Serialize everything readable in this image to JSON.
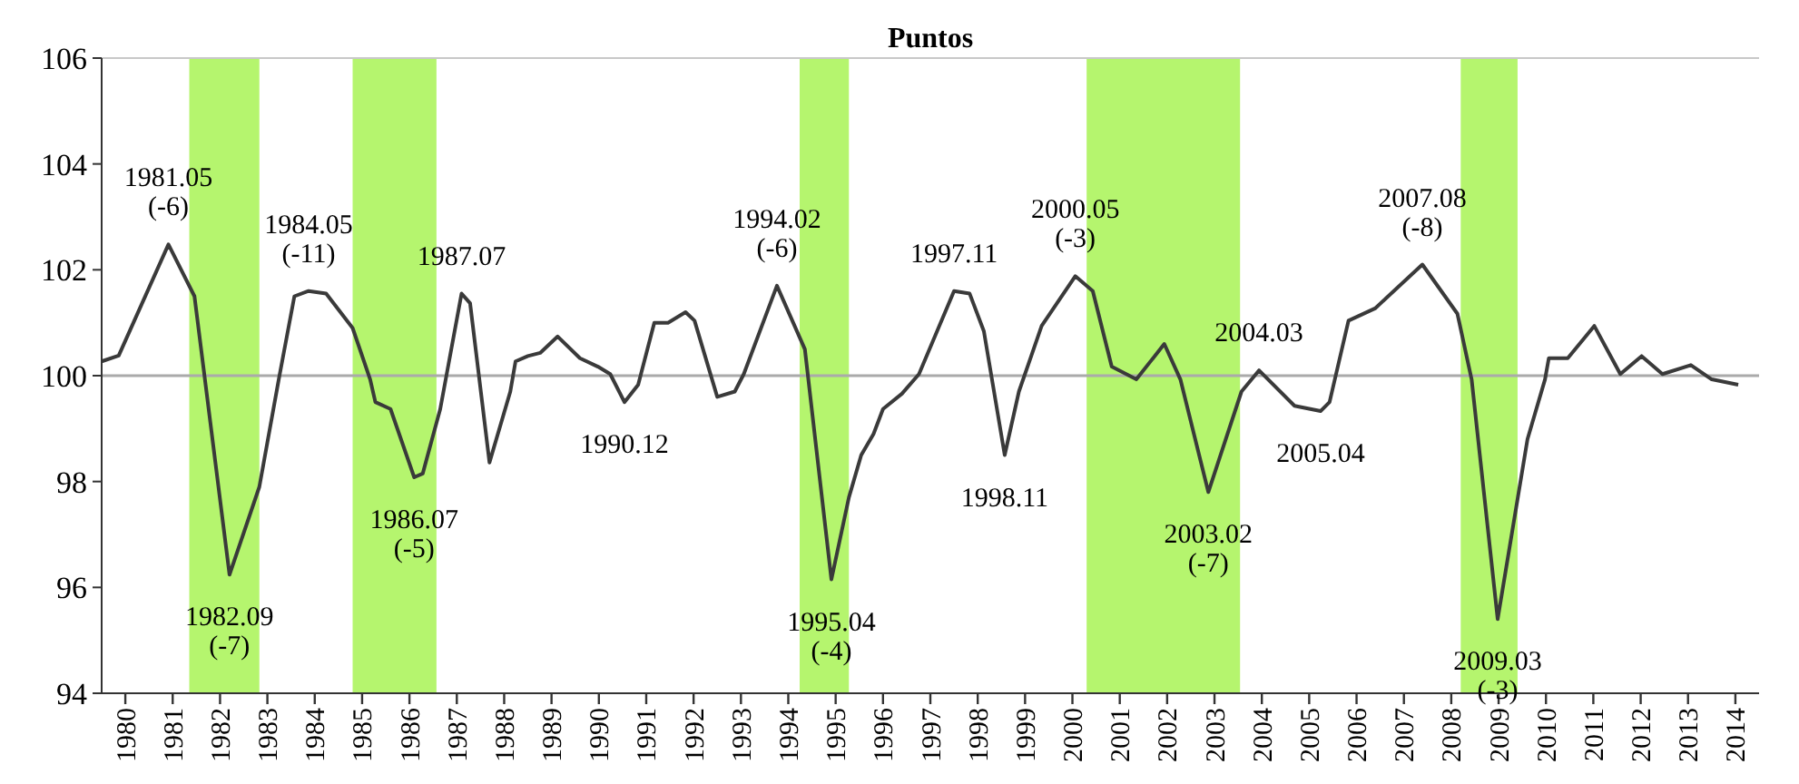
{
  "chart_data": {
    "type": "line",
    "title": "Puntos",
    "x": [
      1979.5,
      1979.86,
      1980.91,
      1981.46,
      1982.2,
      1982.83,
      1983.24,
      1983.57,
      1983.87,
      1984.24,
      1984.8,
      1985.17,
      1985.28,
      1985.6,
      1986.1,
      1986.28,
      1986.65,
      1987.1,
      1987.28,
      1987.69,
      1988.13,
      1988.24,
      1988.5,
      1988.76,
      1989.13,
      1989.6,
      1989.98,
      1990.24,
      1990.54,
      1990.83,
      1991.17,
      1991.46,
      1991.83,
      1992.02,
      1992.5,
      1992.87,
      1993.06,
      1993.76,
      1994.35,
      1994.91,
      1995.28,
      1995.54,
      1995.8,
      1996.0,
      1996.4,
      1996.76,
      1997.5,
      1997.83,
      1998.13,
      1998.57,
      1998.87,
      1999.13,
      1999.35,
      2000.06,
      2000.43,
      2000.83,
      2001.35,
      2001.94,
      2002.28,
      2002.87,
      2003.57,
      2003.94,
      2004.69,
      2005.24,
      2005.43,
      2005.83,
      2006.39,
      2007.39,
      2008.13,
      2008.43,
      2008.98,
      2009.61,
      2009.98,
      2010.06,
      2010.46,
      2011.02,
      2011.57,
      2012.02,
      2012.46,
      2013.06,
      2013.5,
      2014.06
    ],
    "series": [
      {
        "color": "#3a3a3a",
        "values": [
          100.27,
          100.38,
          102.48,
          101.5,
          96.24,
          97.9,
          99.93,
          101.5,
          101.6,
          101.55,
          100.9,
          99.93,
          99.5,
          99.37,
          98.08,
          98.15,
          99.37,
          101.55,
          101.37,
          98.36,
          99.7,
          100.27,
          100.37,
          100.43,
          100.74,
          100.33,
          100.17,
          100.03,
          99.5,
          99.83,
          101.0,
          101.0,
          101.2,
          101.04,
          99.6,
          99.7,
          100.03,
          101.7,
          100.5,
          96.15,
          97.7,
          98.5,
          98.9,
          99.37,
          99.66,
          100.03,
          101.6,
          101.55,
          100.84,
          98.5,
          99.7,
          100.37,
          100.94,
          101.88,
          101.6,
          100.17,
          99.93,
          100.6,
          99.93,
          97.8,
          99.7,
          100.1,
          99.43,
          99.33,
          99.5,
          101.04,
          101.27,
          102.1,
          101.17,
          99.93,
          95.4,
          98.8,
          99.93,
          100.33,
          100.33,
          100.94,
          100.03,
          100.37,
          100.03,
          100.2,
          99.93,
          99.83
        ]
      }
    ],
    "xlim": [
      1979.5,
      2014.5
    ],
    "xticks": [
      1980,
      1981,
      1982,
      1983,
      1984,
      1985,
      1986,
      1987,
      1988,
      1989,
      1990,
      1991,
      1992,
      1993,
      1994,
      1995,
      1996,
      1997,
      1998,
      1999,
      2000,
      2001,
      2002,
      2003,
      2004,
      2005,
      2006,
      2007,
      2008,
      2009,
      2010,
      2011,
      2012,
      2013,
      2014
    ],
    "ylim": [
      94,
      106
    ],
    "yticks": [
      94,
      96,
      98,
      100,
      102,
      104,
      106
    ],
    "grid": false,
    "marker": "none",
    "line_style": "solid",
    "ref_lines": [
      {
        "axis": "y",
        "value": 100,
        "color": "#aaaaaa"
      }
    ],
    "bands": [
      {
        "axis": "x",
        "from": 1981.35,
        "to": 1982.83,
        "color": "#b5f56e"
      },
      {
        "axis": "x",
        "from": 1984.8,
        "to": 1986.57,
        "color": "#b5f56e"
      },
      {
        "axis": "x",
        "from": 1994.24,
        "to": 1995.28,
        "color": "#b5f56e"
      },
      {
        "axis": "x",
        "from": 2000.3,
        "to": 2003.54,
        "color": "#b5f56e"
      },
      {
        "axis": "x",
        "from": 2008.2,
        "to": 2009.4,
        "color": "#b5f56e"
      }
    ],
    "annotations": [
      {
        "text": "1981.05\n(-6)",
        "x": 1980.91,
        "y": 102.48
      },
      {
        "text": "1982.09\n(-7)",
        "x": 1982.2,
        "y": 96.24
      },
      {
        "text": "1984.05\n(-11)",
        "x": 1983.87,
        "y": 101.6
      },
      {
        "text": "1986.07\n(-5)",
        "x": 1986.1,
        "y": 98.08
      },
      {
        "text": "1987.07",
        "x": 1987.1,
        "y": 101.55
      },
      {
        "text": "1990.12",
        "x": 1990.54,
        "y": 99.5
      },
      {
        "text": "1994.02\n(-6)",
        "x": 1993.76,
        "y": 101.7
      },
      {
        "text": "1995.04\n(-4)",
        "x": 1994.91,
        "y": 96.15
      },
      {
        "text": "1997.11",
        "x": 1997.5,
        "y": 101.6
      },
      {
        "text": "1998.11",
        "x": 1998.57,
        "y": 98.5
      },
      {
        "text": "2000.05\n(-3)",
        "x": 2000.06,
        "y": 101.88
      },
      {
        "text": "2003.02\n(-7)",
        "x": 2002.87,
        "y": 97.8
      },
      {
        "text": "2004.03",
        "x": 2003.94,
        "y": 100.1
      },
      {
        "text": "2005.04",
        "x": 2005.24,
        "y": 99.33
      },
      {
        "text": "2007.08\n(-8)",
        "x": 2007.39,
        "y": 102.1
      },
      {
        "text": "2009.03\n(-3)",
        "x": 2008.98,
        "y": 95.4
      }
    ]
  }
}
